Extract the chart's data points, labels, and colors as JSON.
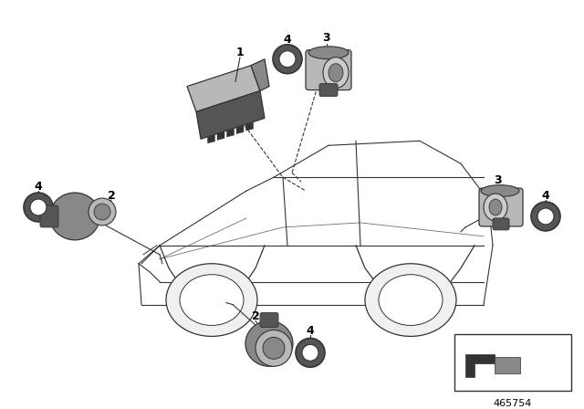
{
  "bg_color": "#ffffff",
  "line_color": "#333333",
  "part_number_bottom": "465754",
  "grey_light": "#b8b8b8",
  "grey_mid": "#888888",
  "grey_dark": "#555555",
  "grey_darker": "#333333"
}
